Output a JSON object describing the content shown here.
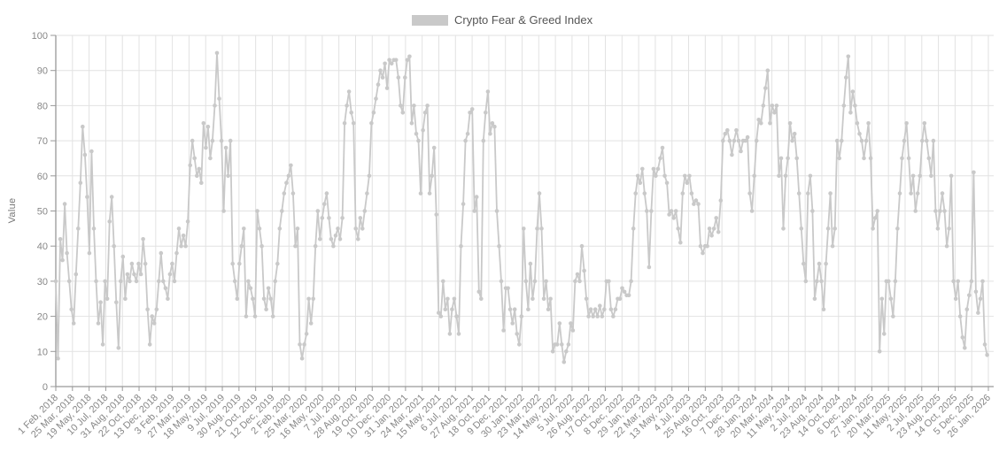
{
  "chart_data": {
    "type": "line",
    "title": "Crypto Fear & Greed Index",
    "legend": {
      "position": "top-center",
      "entries": [
        {
          "label": "Crypto Fear & Greed Index",
          "color": "#c9c9c9"
        }
      ]
    },
    "ylabel": "Value",
    "xlabel": "",
    "ylim": [
      0,
      100
    ],
    "grid": true,
    "marker": "circle",
    "y_ticks": [
      0,
      10,
      20,
      30,
      40,
      50,
      60,
      70,
      80,
      90,
      100
    ],
    "x_tick_labels": [
      "1 Feb, 2018",
      "25 Mar, 2018",
      "19 May, 2018",
      "10 Jul, 2018",
      "31 Aug, 2018",
      "22 Oct, 2018",
      "13 Dec, 2018",
      "3 Feb, 2019",
      "27 Mar, 2019",
      "18 May, 2019",
      "9 Jul, 2019",
      "30 Aug, 2019",
      "21 Oct, 2019",
      "12 Dec, 2019",
      "2 Feb, 2020",
      "25 Mar, 2020",
      "16 May, 2020",
      "7 Jul, 2020",
      "28 Aug, 2020",
      "19 Oct, 2020",
      "10 Dec, 2020",
      "31 Jan, 2021",
      "24 Mar, 2021",
      "15 May, 2021",
      "6 Jul, 2021",
      "27 Aug, 2021",
      "18 Oct, 2021",
      "9 Dec, 2021",
      "30 Jan, 2022",
      "23 Mar, 2022",
      "14 May, 2022",
      "5 Jul, 2022",
      "26 Aug, 2022",
      "17 Oct, 2022",
      "8 Dec, 2022",
      "29 Jan, 2023",
      "22 Mar, 2023",
      "13 May, 2023",
      "4 Jul, 2023",
      "25 Aug, 2023",
      "16 Oct, 2023",
      "7 Dec, 2023",
      "28 Jan, 2024",
      "20 Mar, 2024",
      "11 May, 2024",
      "2 Jul, 2024",
      "23 Aug, 2024",
      "14 Oct, 2024",
      "6 Dec, 2024",
      "27 Jan, 2025",
      "20 Mar, 2025",
      "11 May, 2025",
      "2 Jul, 2025",
      "23 Aug, 2025",
      "14 Oct, 2025",
      "5 Dec, 2025",
      "26 Jan, 2026"
    ],
    "series": [
      {
        "name": "Crypto Fear & Greed Index",
        "color": "#c9c9c9",
        "x_start_date": "2018-02-01",
        "x_end_date": "2026-01-22",
        "sample_interval_days": 7,
        "values": [
          30,
          8,
          42,
          36,
          52,
          38,
          30,
          22,
          18,
          32,
          45,
          58,
          74,
          66,
          54,
          38,
          67,
          45,
          30,
          18,
          24,
          12,
          30,
          25,
          47,
          54,
          40,
          24,
          11,
          30,
          37,
          25,
          32,
          30,
          35,
          32,
          30,
          35,
          32,
          42,
          35,
          22,
          12,
          20,
          18,
          22,
          30,
          38,
          30,
          28,
          25,
          32,
          35,
          30,
          38,
          45,
          40,
          43,
          40,
          47,
          63,
          70,
          65,
          60,
          62,
          58,
          75,
          68,
          74,
          65,
          70,
          80,
          95,
          82,
          70,
          50,
          68,
          60,
          70,
          35,
          30,
          25,
          35,
          40,
          45,
          20,
          30,
          28,
          25,
          20,
          50,
          45,
          40,
          25,
          22,
          28,
          25,
          20,
          30,
          35,
          45,
          50,
          55,
          58,
          60,
          63,
          55,
          40,
          45,
          12,
          8,
          12,
          15,
          25,
          18,
          25,
          40,
          50,
          42,
          48,
          52,
          55,
          48,
          42,
          40,
          43,
          45,
          42,
          48,
          75,
          80,
          84,
          78,
          75,
          45,
          42,
          48,
          45,
          50,
          55,
          60,
          75,
          78,
          82,
          86,
          90,
          88,
          92,
          85,
          93,
          92,
          93,
          93,
          88,
          80,
          78,
          88,
          93,
          94,
          75,
          80,
          72,
          70,
          55,
          73,
          78,
          80,
          55,
          60,
          68,
          49,
          21,
          20,
          30,
          22,
          25,
          15,
          22,
          25,
          20,
          15,
          40,
          52,
          70,
          72,
          78,
          79,
          50,
          54,
          27,
          25,
          70,
          78,
          84,
          72,
          75,
          74,
          50,
          40,
          30,
          16,
          28,
          28,
          22,
          18,
          22,
          15,
          12,
          20,
          45,
          30,
          22,
          35,
          25,
          30,
          45,
          55,
          45,
          25,
          30,
          22,
          25,
          10,
          12,
          12,
          18,
          12,
          7,
          10,
          12,
          18,
          16,
          30,
          32,
          30,
          40,
          33,
          25,
          20,
          22,
          20,
          22,
          20,
          23,
          20,
          22,
          30,
          30,
          22,
          20,
          22,
          25,
          25,
          28,
          27,
          26,
          26,
          30,
          45,
          55,
          60,
          58,
          62,
          55,
          50,
          34,
          50,
          62,
          60,
          62,
          65,
          68,
          60,
          58,
          49,
          50,
          48,
          50,
          45,
          41,
          55,
          60,
          58,
          60,
          55,
          52,
          53,
          52,
          40,
          38,
          40,
          40,
          45,
          43,
          45,
          48,
          44,
          53,
          70,
          72,
          73,
          70,
          66,
          70,
          73,
          70,
          67,
          70,
          70,
          71,
          55,
          50,
          60,
          70,
          76,
          75,
          80,
          85,
          90,
          75,
          80,
          78,
          80,
          60,
          65,
          45,
          60,
          65,
          75,
          70,
          72,
          65,
          55,
          45,
          35,
          30,
          55,
          60,
          50,
          25,
          30,
          35,
          30,
          22,
          35,
          45,
          55,
          40,
          45,
          70,
          65,
          70,
          80,
          88,
          94,
          78,
          84,
          80,
          75,
          72,
          70,
          65,
          70,
          75,
          65,
          45,
          48,
          50,
          10,
          25,
          15,
          30,
          30,
          25,
          20,
          30,
          45,
          55,
          65,
          70,
          75,
          65,
          55,
          60,
          50,
          55,
          60,
          70,
          75,
          70,
          65,
          60,
          70,
          50,
          45,
          50,
          55,
          50,
          40,
          45,
          60,
          30,
          25,
          30,
          20,
          14,
          11,
          22,
          26,
          30,
          61,
          27,
          21,
          25,
          30,
          12,
          9
        ]
      }
    ]
  },
  "colors": {
    "series": "#c9c9c9",
    "grid": "#e2e2e2",
    "axis": "#999999",
    "tick_text": "#878787",
    "legend_text": "#555555"
  }
}
